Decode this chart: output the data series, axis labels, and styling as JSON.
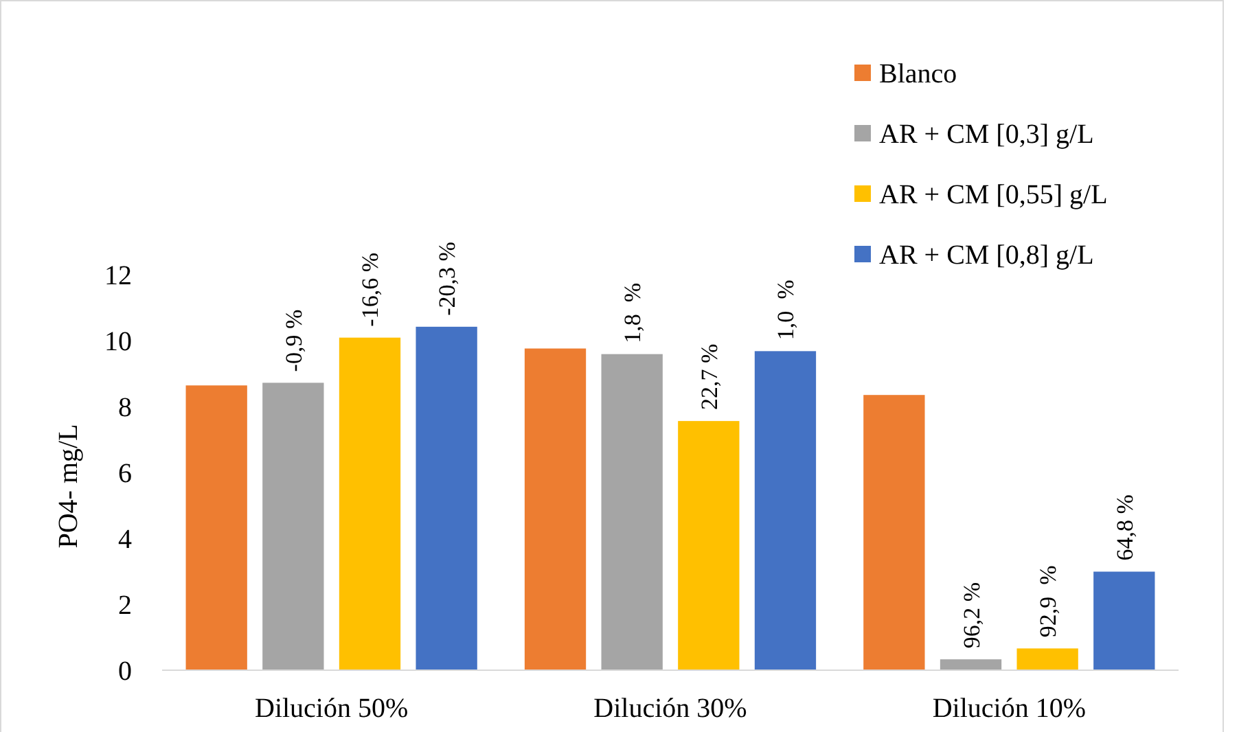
{
  "chart_data": {
    "type": "bar",
    "ylabel": "PO4- mg/L",
    "categories": [
      "Dilución 50%",
      "Dilución 30%",
      "Dilución 10%"
    ],
    "series": [
      {
        "name": "Blanco",
        "color": "#ed7d31",
        "values": [
          8.64,
          9.76,
          8.35
        ]
      },
      {
        "name": "AR + CM [0,3] g/L",
        "color": "#a5a5a5",
        "values": [
          8.72,
          9.59,
          0.33
        ]
      },
      {
        "name": "AR + CM [0,55] g/L",
        "color": "#ffc000",
        "values": [
          10.09,
          7.56,
          0.66
        ]
      },
      {
        "name": "AR + CM [0,8] g/L",
        "color": "#4472c4",
        "values": [
          10.42,
          9.68,
          2.99
        ]
      }
    ],
    "annotations": [
      "-0,9 %",
      "-16,6 %",
      "-20,3 %",
      "1,8  %",
      "22,7 %",
      "1,0  %",
      "96,2 %",
      "92,9  %",
      "64,8 %"
    ],
    "ylim": [
      0,
      12
    ],
    "yticks": [
      0,
      2,
      4,
      6,
      8,
      10,
      12
    ],
    "legend": "top right"
  }
}
